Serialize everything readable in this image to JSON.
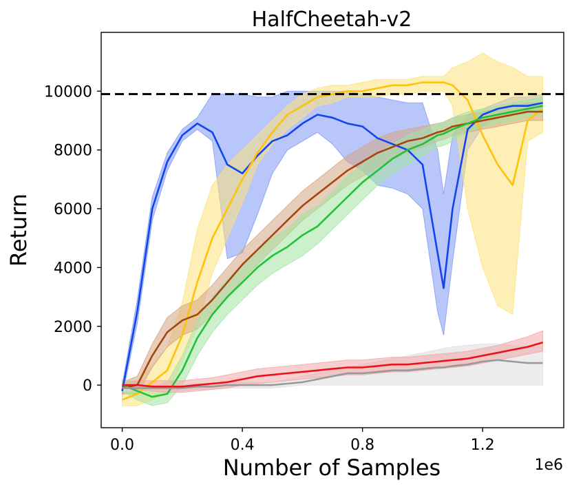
{
  "chart_data": {
    "type": "line",
    "title": "HalfCheetah-v2",
    "xlabel": "Number of Samples",
    "ylabel": "Return",
    "x_offset_text": "1e6",
    "xlim": [
      -0.07,
      1.47
    ],
    "ylim": [
      -1450,
      12000
    ],
    "x_ticks": [
      0.0,
      0.4,
      0.8,
      1.2
    ],
    "x_tick_labels": [
      "0.0",
      "0.4",
      "0.8",
      "1.2"
    ],
    "y_ticks": [
      0,
      2000,
      4000,
      6000,
      8000,
      10000
    ],
    "y_tick_labels": [
      "0",
      "2000",
      "4000",
      "6000",
      "8000",
      "10000"
    ],
    "reference_line": {
      "y": 9900,
      "style": "dashed",
      "color": "#000000"
    },
    "x": [
      0.0,
      0.05,
      0.1,
      0.15,
      0.2,
      0.25,
      0.3,
      0.35,
      0.4,
      0.45,
      0.5,
      0.55,
      0.6,
      0.65,
      0.7,
      0.75,
      0.8,
      0.85,
      0.9,
      0.95,
      1.0,
      1.05,
      1.07,
      1.1,
      1.15,
      1.2,
      1.25,
      1.3,
      1.35,
      1.4
    ],
    "series": [
      {
        "name": "blue",
        "color": "#1144ee",
        "fill": "#7d98f5",
        "mean": [
          -200,
          2500,
          6000,
          7600,
          8500,
          8900,
          8600,
          7500,
          7200,
          7800,
          8300,
          8500,
          8900,
          9200,
          9100,
          8900,
          8800,
          8400,
          8200,
          8000,
          7500,
          4500,
          3300,
          6000,
          8700,
          9200,
          9400,
          9500,
          9500,
          9600
        ],
        "lower": [
          -400,
          2100,
          5600,
          7300,
          8300,
          8700,
          8300,
          4300,
          4500,
          5800,
          7200,
          8000,
          8300,
          8600,
          8200,
          7600,
          7300,
          6800,
          6700,
          6500,
          6000,
          2500,
          1700,
          4200,
          8000,
          8800,
          9100,
          9200,
          9300,
          9300
        ],
        "upper": [
          0,
          2900,
          6400,
          7900,
          8700,
          9100,
          9900,
          9900,
          9900,
          9800,
          9800,
          10000,
          10000,
          10000,
          10000,
          10000,
          9900,
          9800,
          9700,
          9600,
          9600,
          8000,
          6500,
          8500,
          9200,
          9400,
          9600,
          9800,
          9800,
          9900
        ]
      },
      {
        "name": "yellow",
        "color": "#ffc20a",
        "fill": "#fde27a",
        "mean": [
          -500,
          -300,
          100,
          500,
          1700,
          3500,
          5000,
          6000,
          7000,
          7900,
          8600,
          9200,
          9500,
          9800,
          9900,
          10000,
          10000,
          10100,
          10200,
          10200,
          10300,
          10300,
          10300,
          10200,
          9700,
          8500,
          7500,
          6800,
          9000,
          9400
        ],
        "lower": [
          -700,
          -700,
          -500,
          -300,
          800,
          2000,
          3800,
          5000,
          6200,
          7500,
          8200,
          8700,
          9100,
          9500,
          9600,
          9800,
          9800,
          9800,
          9900,
          9900,
          10000,
          10000,
          10000,
          9500,
          6000,
          4000,
          2700,
          2400,
          8300,
          8600
        ],
        "upper": [
          -300,
          100,
          700,
          1300,
          2800,
          5300,
          6800,
          7500,
          8000,
          8500,
          9000,
          9500,
          9900,
          10100,
          10200,
          10200,
          10300,
          10400,
          10400,
          10400,
          10500,
          10500,
          10500,
          10800,
          11000,
          11300,
          11000,
          10800,
          10500,
          10500
        ]
      },
      {
        "name": "brown",
        "color": "#a6450f",
        "fill": "#d4a583",
        "mean": [
          -100,
          0,
          1000,
          1800,
          2200,
          2400,
          2900,
          3500,
          4100,
          4600,
          5100,
          5600,
          6100,
          6500,
          6900,
          7300,
          7600,
          7900,
          8100,
          8300,
          8400,
          8600,
          8650,
          8800,
          8900,
          9000,
          9100,
          9200,
          9300,
          9300
        ],
        "lower": [
          -300,
          -300,
          600,
          1300,
          1700,
          1900,
          2400,
          3000,
          3600,
          4100,
          4600,
          5100,
          5600,
          6000,
          6400,
          6800,
          7100,
          7400,
          7700,
          7900,
          8100,
          8300,
          8350,
          8500,
          8600,
          8700,
          8800,
          8900,
          9000,
          9000
        ],
        "upper": [
          100,
          300,
          1400,
          2300,
          2700,
          2900,
          3400,
          4000,
          4600,
          5100,
          5600,
          6100,
          6600,
          7000,
          7400,
          7800,
          8100,
          8400,
          8600,
          8700,
          8800,
          8900,
          8950,
          9100,
          9200,
          9300,
          9400,
          9500,
          9600,
          9600
        ]
      },
      {
        "name": "green",
        "color": "#22c033",
        "fill": "#a2e3a3",
        "mean": [
          0,
          -200,
          -400,
          -300,
          500,
          1600,
          2400,
          3000,
          3500,
          4000,
          4400,
          4700,
          5100,
          5400,
          5900,
          6400,
          6900,
          7300,
          7700,
          8000,
          8200,
          8500,
          8550,
          8700,
          8900,
          9100,
          9200,
          9300,
          9400,
          9500
        ],
        "lower": [
          -200,
          -500,
          -700,
          -600,
          0,
          1000,
          1800,
          2400,
          2900,
          3400,
          3800,
          4100,
          4400,
          4800,
          5300,
          5800,
          6300,
          6800,
          7200,
          7500,
          7800,
          8100,
          8150,
          8300,
          8600,
          8800,
          8900,
          9000,
          9100,
          9200
        ],
        "upper": [
          200,
          100,
          -100,
          100,
          1000,
          2200,
          3000,
          3600,
          4100,
          4600,
          5000,
          5300,
          5800,
          6100,
          6600,
          7100,
          7500,
          7900,
          8200,
          8500,
          8700,
          8900,
          8950,
          9100,
          9300,
          9400,
          9500,
          9600,
          9700,
          9800
        ]
      },
      {
        "name": "gray",
        "color": "#999999",
        "fill": "#dddddd",
        "mean": [
          -100,
          -100,
          -100,
          -100,
          -100,
          -50,
          -50,
          0,
          0,
          0,
          0,
          50,
          100,
          200,
          300,
          400,
          400,
          450,
          500,
          500,
          550,
          600,
          600,
          650,
          700,
          800,
          850,
          800,
          750,
          750
        ],
        "lower": [
          -200,
          -200,
          -200,
          -200,
          -200,
          -150,
          -150,
          -100,
          -100,
          -100,
          -100,
          -50,
          0,
          0,
          0,
          0,
          0,
          0,
          0,
          0,
          0,
          0,
          0,
          0,
          0,
          0,
          0,
          0,
          0,
          0
        ],
        "upper": [
          0,
          0,
          0,
          0,
          0,
          50,
          50,
          100,
          100,
          100,
          100,
          200,
          300,
          400,
          500,
          600,
          700,
          800,
          900,
          1000,
          1100,
          1200,
          1250,
          1300,
          1350,
          1400,
          1400,
          1350,
          1300,
          1300
        ]
      },
      {
        "name": "red",
        "color": "#e8131a",
        "fill": "#f3a6a8",
        "mean": [
          0,
          0,
          -50,
          -50,
          -50,
          0,
          50,
          100,
          200,
          300,
          350,
          400,
          450,
          500,
          550,
          600,
          600,
          650,
          700,
          700,
          750,
          800,
          820,
          850,
          900,
          1000,
          1100,
          1200,
          1300,
          1450
        ],
        "lower": [
          -100,
          -150,
          -200,
          -250,
          -250,
          -200,
          -150,
          -100,
          0,
          50,
          100,
          150,
          200,
          250,
          300,
          350,
          350,
          400,
          450,
          450,
          500,
          550,
          570,
          600,
          650,
          750,
          850,
          950,
          1050,
          1150
        ],
        "upper": [
          100,
          150,
          150,
          150,
          150,
          200,
          250,
          350,
          450,
          550,
          600,
          650,
          700,
          750,
          800,
          850,
          850,
          900,
          950,
          950,
          1000,
          1050,
          1070,
          1100,
          1150,
          1250,
          1350,
          1500,
          1650,
          1850
        ]
      }
    ]
  }
}
